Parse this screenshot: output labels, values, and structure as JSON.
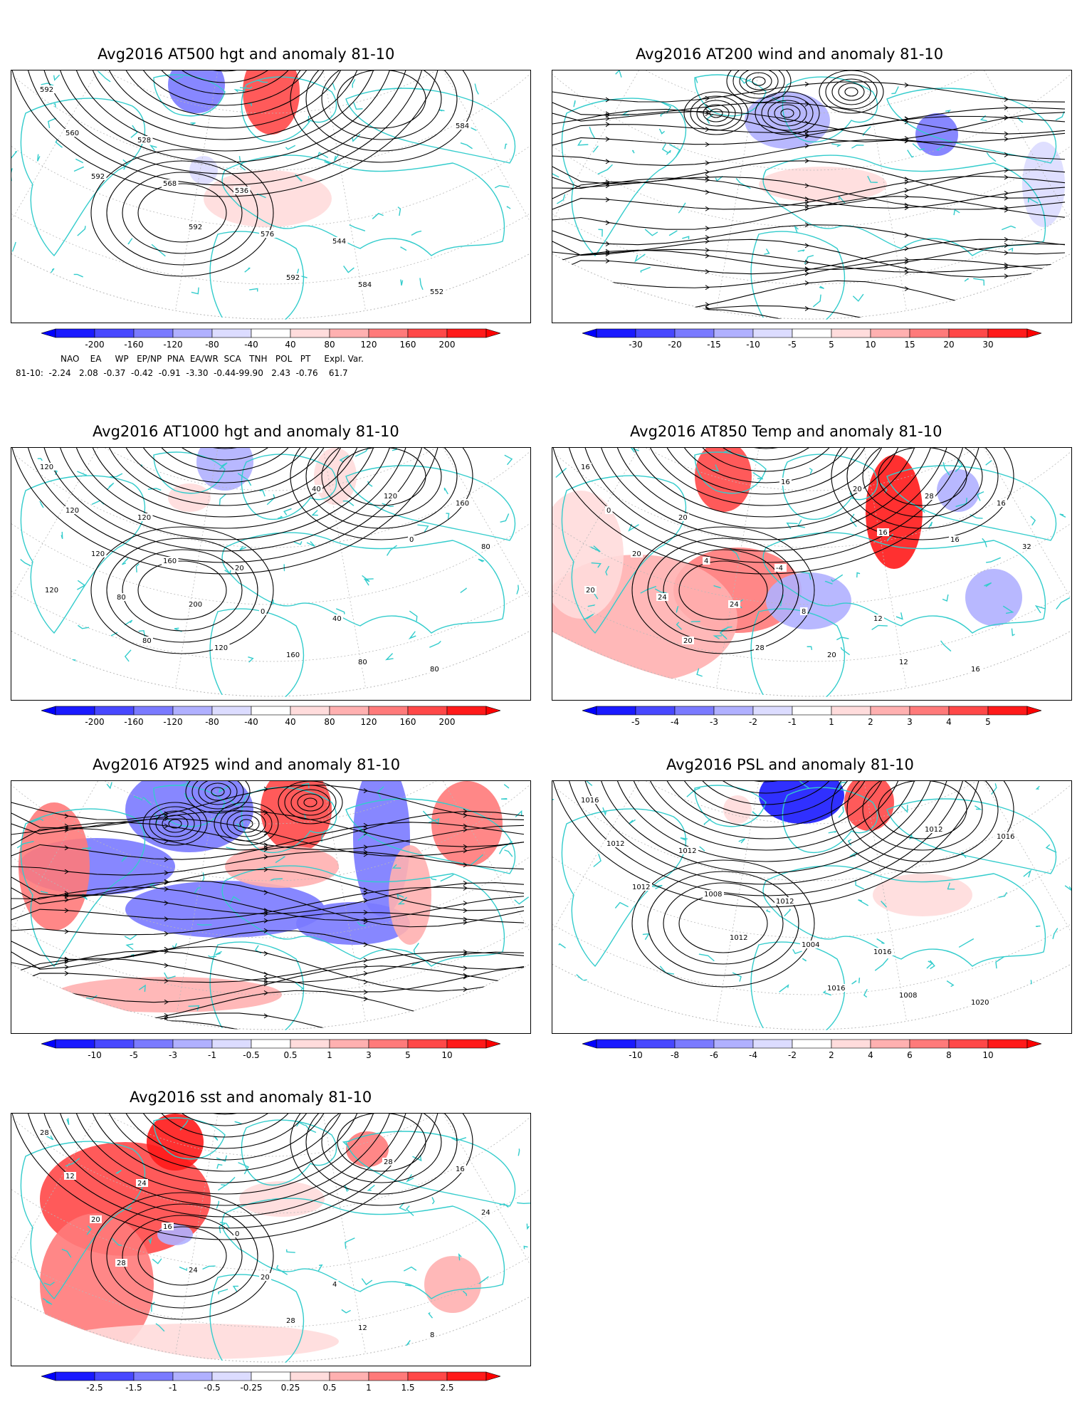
{
  "colors": {
    "coast": "#33cccc",
    "contour": "#000000",
    "grid": "#b8b8b8",
    "anom_pos": [
      "#ffdcdc",
      "#ffb0b0",
      "#ff7a7a",
      "#ff4848",
      "#ff1a1a"
    ],
    "anom_neg": [
      "#dcdcff",
      "#b0b0ff",
      "#7a7aff",
      "#4848ff",
      "#1a1aff"
    ]
  },
  "panels": [
    {
      "id": "at500",
      "title": "Avg2016 AT500 hgt and anomaly 81-10",
      "colorbar_labels": [
        "-200",
        "-160",
        "-120",
        "-80",
        "-40",
        "40",
        "80",
        "120",
        "160",
        "200"
      ],
      "contour_labels": [
        "592",
        "528",
        "536",
        "544",
        "552",
        "560",
        "568",
        "576",
        "584",
        "584",
        "592",
        "592",
        "592"
      ],
      "anomaly_level": "weak"
    },
    {
      "id": "at200",
      "title": "Avg2016 AT200 wind and anomaly 81-10",
      "colorbar_labels": [
        "-30",
        "-20",
        "-15",
        "-10",
        "-5",
        "5",
        "10",
        "15",
        "20",
        "30"
      ],
      "contour_labels": [],
      "anomaly_level": "weak"
    },
    {
      "id": "at1000",
      "title": "Avg2016 AT1000 hgt and anomaly 81-10",
      "colorbar_labels": [
        "-200",
        "-160",
        "-120",
        "-80",
        "-40",
        "40",
        "80",
        "120",
        "160",
        "200"
      ],
      "contour_labels": [
        "120",
        "120",
        "20",
        "40",
        "80",
        "120",
        "160",
        "0",
        "80",
        "160",
        "120",
        "200",
        "160",
        "120",
        "80",
        "80",
        "120",
        "40",
        "0",
        "120",
        "80"
      ],
      "anomaly_level": "weak"
    },
    {
      "id": "at850",
      "title": "Avg2016 AT850 Temp and anomaly 81-10",
      "colorbar_labels": [
        "-5",
        "-4",
        "-3",
        "-2",
        "-1",
        "1",
        "2",
        "3",
        "4",
        "5"
      ],
      "contour_labels": [
        "16",
        "20",
        "-4",
        "12",
        "16",
        "0",
        "4",
        "8",
        "12",
        "16",
        "20",
        "24",
        "20",
        "28",
        "32",
        "24",
        "28",
        "20",
        "16",
        "20",
        "20",
        "16",
        "16"
      ],
      "anomaly_level": "strong"
    },
    {
      "id": "at925",
      "title": "Avg2016 AT925 wind and anomaly 81-10",
      "colorbar_labels": [
        "-10",
        "-5",
        "-3",
        "-1",
        "-0.5",
        "0.5",
        "1",
        "3",
        "5",
        "10"
      ],
      "contour_labels": [],
      "anomaly_level": "strong"
    },
    {
      "id": "psl",
      "title": "Avg2016 PSL and anomaly 81-10",
      "colorbar_labels": [
        "-10",
        "-8",
        "-6",
        "-4",
        "-2",
        "2",
        "4",
        "6",
        "8",
        "10"
      ],
      "contour_labels": [
        "1016",
        "1012",
        "1012",
        "1016",
        "1020",
        "1012",
        "1008",
        "1004",
        "1008",
        "1016",
        "1012",
        "1012",
        "1016",
        "1012"
      ],
      "anomaly_level": "weak"
    },
    {
      "id": "sst",
      "title": "Avg2016 sst and anomaly 81-10",
      "colorbar_labels": [
        "-2.5",
        "-1.5",
        "-1",
        "-0.5",
        "-0.25",
        "0.25",
        "0.5",
        "1",
        "1.5",
        "2.5"
      ],
      "contour_labels": [
        "28",
        "24",
        "0",
        "4",
        "8",
        "12",
        "16",
        "20",
        "12",
        "16",
        "20",
        "24",
        "28",
        "28",
        "24",
        "28"
      ],
      "anomaly_level": "strong"
    }
  ],
  "teleconnections": {
    "header": "NAO    EA     WP   EP/NP  PNA  EA/WR  SCA   TNH   POL   PT     Expl. Var.",
    "values": "81-10:  -2.24   2.08  -0.37  -0.42  -0.91  -3.30  -0.44-99.90   2.43  -0.76    61.7"
  }
}
